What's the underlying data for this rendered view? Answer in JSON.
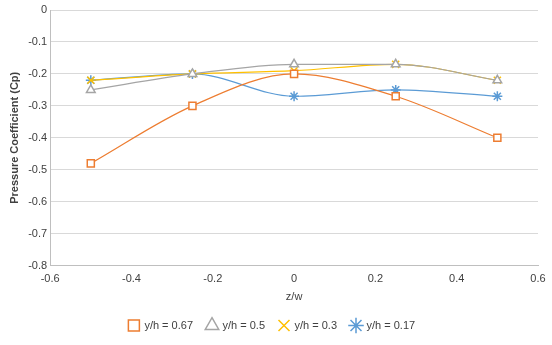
{
  "chart_data": {
    "type": "line",
    "x_label": "z/w",
    "y_label": "Pressure Coefficient (Cp)",
    "x": [
      -0.5,
      -0.25,
      0,
      0.25,
      0.5
    ],
    "series": [
      {
        "name": "y/h = 0.67",
        "color": "#ed7d31",
        "marker": "square",
        "values": [
          -0.48,
          -0.3,
          -0.2,
          -0.27,
          -0.4
        ]
      },
      {
        "name": "y/h = 0.5",
        "color": "#a5a5a5",
        "marker": "triangle",
        "values": [
          -0.25,
          -0.2,
          -0.17,
          -0.17,
          -0.22
        ]
      },
      {
        "name": "y/h = 0.3",
        "color": "#ffc000",
        "marker": "x",
        "values": [
          -0.22,
          -0.2,
          -0.19,
          -0.17,
          -0.22
        ]
      },
      {
        "name": "y/h = 0.17",
        "color": "#5b9bd5",
        "marker": "star",
        "values": [
          -0.22,
          -0.2,
          -0.27,
          -0.25,
          -0.27
        ]
      }
    ],
    "xlim": [
      -0.6,
      0.6
    ],
    "xticks": [
      -0.6,
      -0.4,
      -0.2,
      0,
      0.2,
      0.4,
      0.6
    ],
    "ylim": [
      -0.8,
      0
    ],
    "yticks": [
      -0.8,
      -0.7,
      -0.6,
      -0.5,
      -0.4,
      -0.3,
      -0.2,
      -0.1,
      0
    ],
    "grid": true,
    "legend": "bottom"
  }
}
